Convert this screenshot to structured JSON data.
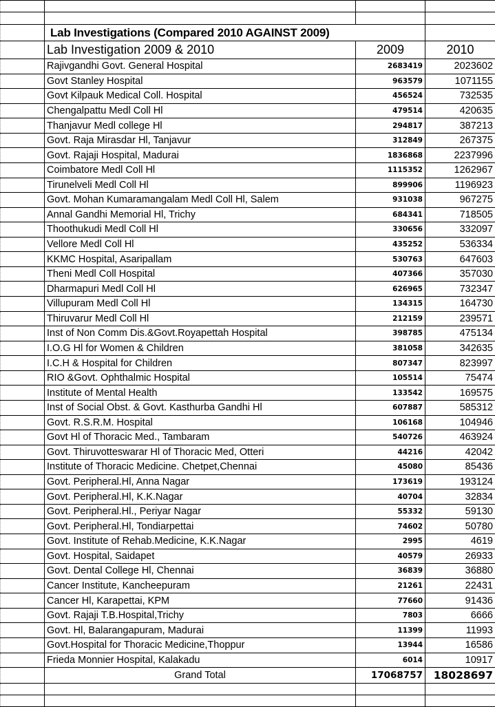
{
  "title": "Lab Investigations  (Compared 2010 AGAINST  2009)",
  "header": {
    "name": "Lab Investigation 2009 & 2010",
    "col_2009": "2009",
    "col_2010": "2010"
  },
  "rows": [
    {
      "name": "Rajivgandhi Govt. General Hospital",
      "v2009": "2683419",
      "v2010": "2023602"
    },
    {
      "name": "Govt Stanley Hospital",
      "v2009": "963579",
      "v2010": "1071155"
    },
    {
      "name": "Govt Kilpauk Medical Coll. Hospital",
      "v2009": "456524",
      "v2010": "732535"
    },
    {
      "name": "Chengalpattu Medl Coll Hl",
      "v2009": "479514",
      "v2010": "420635"
    },
    {
      "name": "Thanjavur Medl college Hl",
      "v2009": "294817",
      "v2010": "387213"
    },
    {
      "name": "Govt. Raja Mirasdar Hl, Tanjavur",
      "v2009": "312849",
      "v2010": "267375"
    },
    {
      "name": "Govt. Rajaji Hospital, Madurai",
      "v2009": "1836868",
      "v2010": "2237996"
    },
    {
      "name": "Coimbatore Medl Coll Hl",
      "v2009": "1115352",
      "v2010": "1262967"
    },
    {
      "name": "Tirunelveli Medl Coll Hl",
      "v2009": "899906",
      "v2010": "1196923"
    },
    {
      "name": "Govt. Mohan Kumaramangalam Medl Coll Hl, Salem",
      "v2009": "931038",
      "v2010": "967275"
    },
    {
      "name": "Annal Gandhi Memorial Hl, Trichy",
      "v2009": "684341",
      "v2010": "718505"
    },
    {
      "name": "Thoothukudi Medl Coll Hl",
      "v2009": "330656",
      "v2010": "332097"
    },
    {
      "name": "Vellore Medl Coll Hl",
      "v2009": "435252",
      "v2010": "536334"
    },
    {
      "name": "KKMC Hospital, Asaripallam",
      "v2009": "530763",
      "v2010": "647603"
    },
    {
      "name": "Theni Medl Coll Hospital",
      "v2009": "407366",
      "v2010": "357030"
    },
    {
      "name": "Dharmapuri Medl Coll Hl",
      "v2009": "626965",
      "v2010": "732347"
    },
    {
      "name": "Villupuram Medl Coll Hl",
      "v2009": "134315",
      "v2010": "164730"
    },
    {
      "name": "Thiruvarur Medl Coll Hl",
      "v2009": "212159",
      "v2010": "239571"
    },
    {
      "name": "Inst of Non Comm Dis.&Govt.Royapettah Hospital",
      "v2009": "398785",
      "v2010": "475134"
    },
    {
      "name": "I.O.G  Hl for Women & Children",
      "v2009": "381058",
      "v2010": "342635"
    },
    {
      "name": "I.C.H & Hospital for Children",
      "v2009": "807347",
      "v2010": "823997"
    },
    {
      "name": "RIO &Govt. Ophthalmic Hospital",
      "v2009": "105514",
      "v2010": "75474"
    },
    {
      "name": "Institute of Mental Health",
      "v2009": "133542",
      "v2010": "169575"
    },
    {
      "name": "Inst of Social Obst. & Govt. Kasthurba Gandhi Hl",
      "v2009": "607887",
      "v2010": "585312"
    },
    {
      "name": "Govt. R.S.R.M. Hospital",
      "v2009": "106168",
      "v2010": "104946"
    },
    {
      "name": "Govt Hl of Thoracic Med., Tambaram",
      "v2009": "540726",
      "v2010": "463924"
    },
    {
      "name": "Govt. Thiruvotteswarar  Hl of Thoracic Med, Otteri",
      "v2009": "44216",
      "v2010": "42042"
    },
    {
      "name": "Institute of Thoracic Medicine. Chetpet,Chennai",
      "v2009": "45080",
      "v2010": "85436"
    },
    {
      "name": "Govt. Peripheral.Hl, Anna Nagar",
      "v2009": "173619",
      "v2010": "193124"
    },
    {
      "name": "Govt. Peripheral.Hl, K.K.Nagar",
      "v2009": "40704",
      "v2010": "32834"
    },
    {
      "name": "Govt. Peripheral.Hl., Periyar Nagar",
      "v2009": "55332",
      "v2010": "59130"
    },
    {
      "name": "Govt. Peripheral.Hl, Tondiarpettai",
      "v2009": "74602",
      "v2010": "50780"
    },
    {
      "name": "Govt. Institute of Rehab.Medicine, K.K.Nagar",
      "v2009": "2995",
      "v2010": "4619"
    },
    {
      "name": "Govt. Hospital, Saidapet",
      "v2009": "40579",
      "v2010": "26933"
    },
    {
      "name": "Govt. Dental College Hl, Chennai",
      "v2009": "36839",
      "v2010": "36880"
    },
    {
      "name": "Cancer Institute, Kancheepuram",
      "v2009": "21261",
      "v2010": "22431"
    },
    {
      "name": "Cancer Hl, Karapettai, KPM",
      "v2009": "77660",
      "v2010": "91436"
    },
    {
      "name": "Govt. Rajaji T.B.Hospital,Trichy",
      "v2009": "7803",
      "v2010": "6666"
    },
    {
      "name": "Govt. Hl, Balarangapuram, Madurai",
      "v2009": "11399",
      "v2010": "11993"
    },
    {
      "name": "Govt.Hospital for Thoracic Medicine,Thoppur",
      "v2009": "13944",
      "v2010": "16586"
    },
    {
      "name": "Frieda Monnier Hospital, Kalakadu",
      "v2009": "6014",
      "v2010": "10917"
    }
  ],
  "total": {
    "label": "Grand Total",
    "v2009": "17068757",
    "v2010": "18028697"
  }
}
